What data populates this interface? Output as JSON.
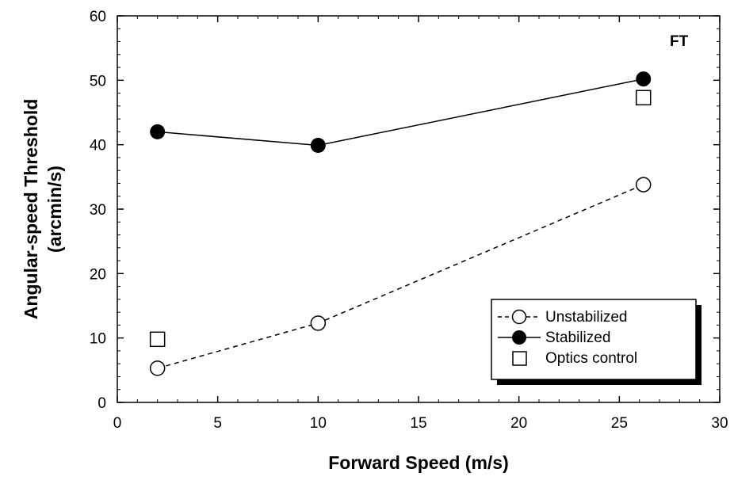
{
  "chart_data": {
    "type": "line",
    "xlabel": "Forward Speed (m/s)",
    "ylabel_line1": "Angular-speed Threshold",
    "ylabel_line2": "(arcmin/s)",
    "xlim": [
      0,
      30
    ],
    "ylim": [
      0,
      60
    ],
    "xticks": [
      0,
      5,
      10,
      15,
      20,
      25,
      30
    ],
    "yticks": [
      0,
      10,
      20,
      30,
      40,
      50,
      60
    ],
    "grid": false,
    "annotation": "FT",
    "legend_position": "bottom-right",
    "series": [
      {
        "name": "Unstabilized",
        "line": "dashed",
        "marker": "open-circle",
        "x": [
          2,
          10,
          26.2
        ],
        "y": [
          5.3,
          12.3,
          33.8
        ]
      },
      {
        "name": "Stabilized",
        "line": "solid",
        "marker": "filled-circle",
        "x": [
          2,
          10,
          26.2
        ],
        "y": [
          42,
          39.9,
          50.2
        ]
      },
      {
        "name": "Optics control",
        "line": "none",
        "marker": "open-square",
        "x": [
          2,
          26.2
        ],
        "y": [
          9.8,
          47.3
        ]
      }
    ]
  }
}
